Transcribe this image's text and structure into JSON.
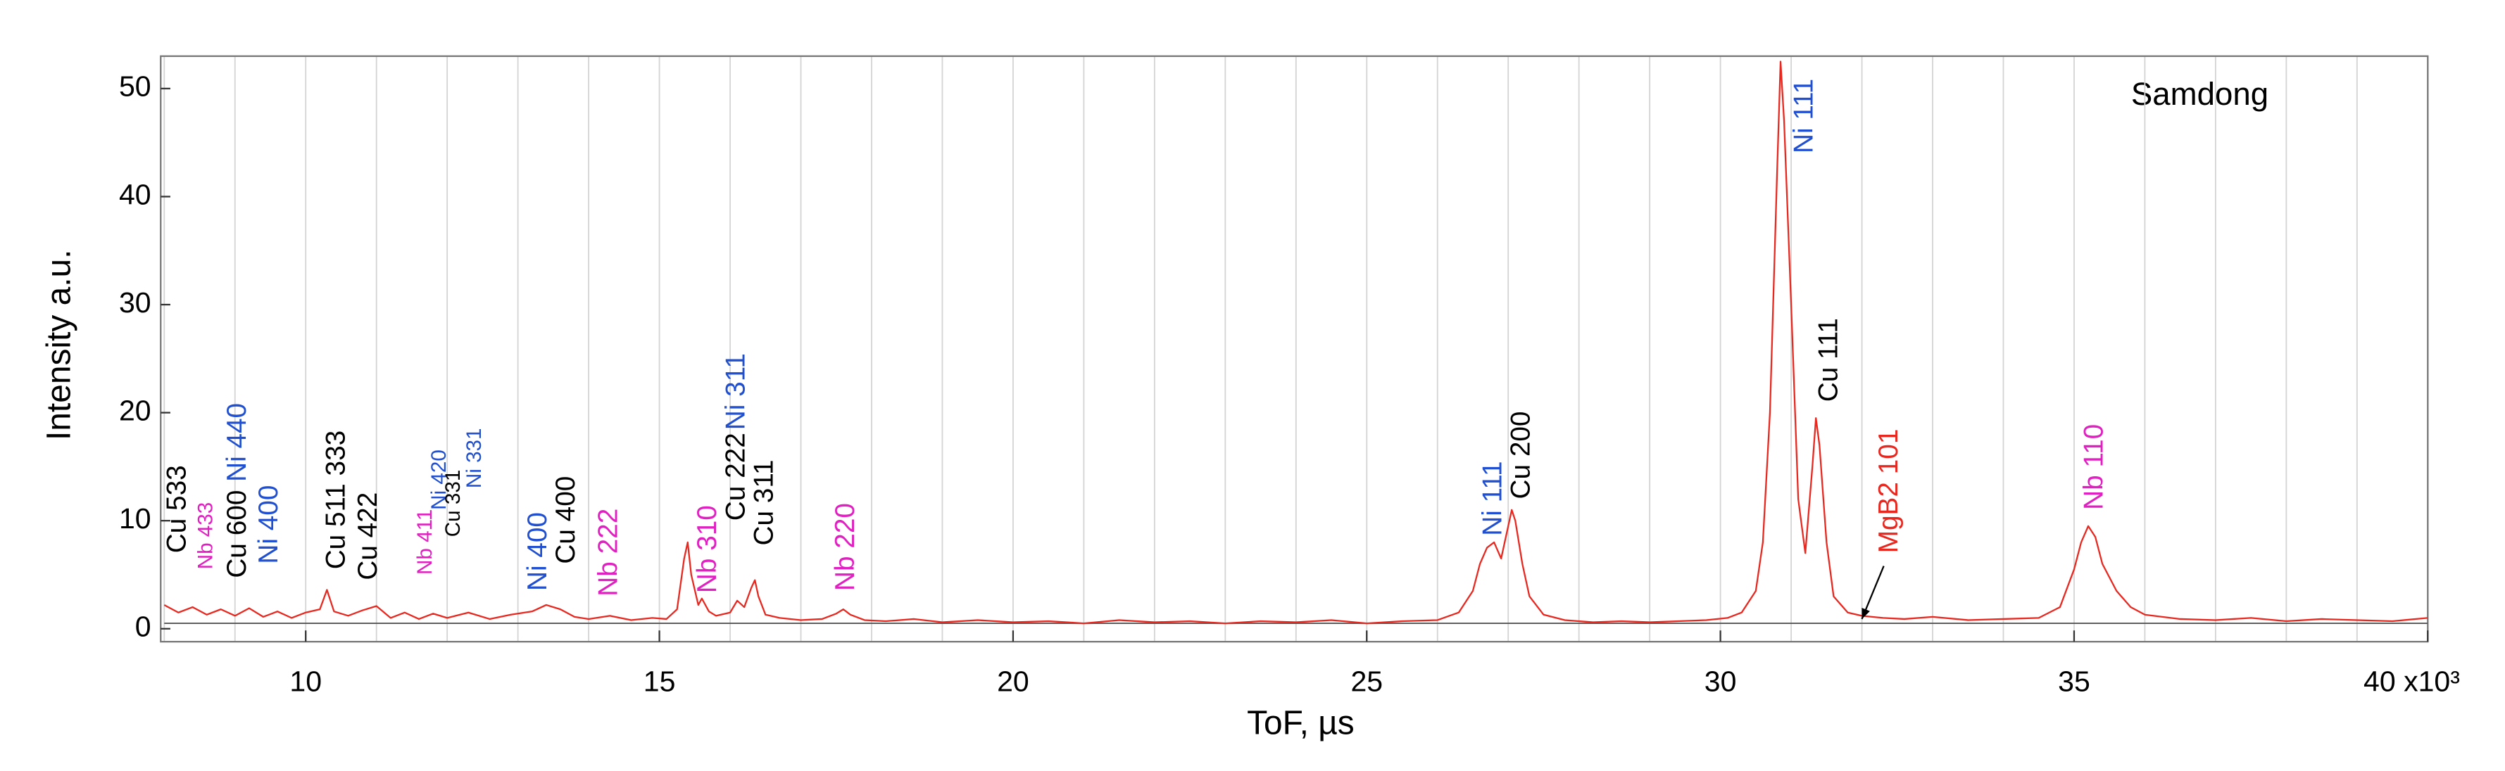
{
  "chart_data": {
    "type": "line",
    "title": "Samdong",
    "xlabel": "ToF,  µs",
    "ylabel": "Intensity a.u.",
    "xlim": [
      7.95,
      40
    ],
    "ylim": [
      -1.2,
      53
    ],
    "xticks": [
      10,
      15,
      20,
      25,
      30,
      35,
      {
        "value": 40,
        "label": "40 x10³"
      }
    ],
    "yticks": [
      0,
      10,
      20,
      30,
      40,
      50
    ],
    "xgrid": [
      8,
      9,
      10,
      11,
      12,
      13,
      14,
      15,
      16,
      17,
      18,
      19,
      20,
      21,
      22,
      23,
      24,
      25,
      26,
      27,
      28,
      29,
      30,
      31,
      32,
      33,
      34,
      35,
      36,
      37,
      38,
      39
    ],
    "series": [
      {
        "color": "#555555",
        "x": [
          8,
          40
        ],
        "values": [
          0.5,
          0.5
        ]
      },
      {
        "color": "#e8271f",
        "x": [
          8.0,
          8.2,
          8.4,
          8.6,
          8.8,
          9.0,
          9.2,
          9.4,
          9.6,
          9.8,
          10.0,
          10.2,
          10.3,
          10.4,
          10.6,
          10.8,
          11.0,
          11.2,
          11.4,
          11.6,
          11.8,
          12.0,
          12.3,
          12.6,
          12.9,
          13.2,
          13.4,
          13.6,
          13.8,
          14.0,
          14.3,
          14.6,
          14.9,
          15.1,
          15.25,
          15.35,
          15.4,
          15.45,
          15.55,
          15.6,
          15.7,
          15.8,
          16.0,
          16.1,
          16.2,
          16.3,
          16.35,
          16.4,
          16.5,
          16.7,
          17.0,
          17.3,
          17.5,
          17.6,
          17.7,
          17.9,
          18.2,
          18.6,
          19.0,
          19.5,
          20.0,
          20.5,
          21.0,
          21.5,
          22.0,
          22.5,
          23.0,
          23.5,
          24.0,
          24.5,
          25.0,
          25.5,
          26.0,
          26.3,
          26.5,
          26.6,
          26.7,
          26.8,
          26.9,
          27.0,
          27.05,
          27.1,
          27.2,
          27.3,
          27.5,
          27.8,
          28.2,
          28.6,
          29.0,
          29.4,
          29.8,
          30.1,
          30.3,
          30.5,
          30.6,
          30.7,
          30.8,
          30.85,
          30.9,
          31.0,
          31.1,
          31.2,
          31.3,
          31.35,
          31.4,
          31.5,
          31.6,
          31.8,
          32.0,
          32.3,
          32.6,
          33.0,
          33.5,
          34.0,
          34.5,
          34.8,
          35.0,
          35.1,
          35.2,
          35.3,
          35.4,
          35.6,
          35.8,
          36.0,
          36.5,
          37.0,
          37.5,
          38.0,
          38.5,
          39.0,
          39.5,
          40.0
        ],
        "values": [
          2.2,
          1.5,
          2.0,
          1.3,
          1.8,
          1.2,
          1.9,
          1.1,
          1.6,
          1.0,
          1.5,
          1.8,
          3.6,
          1.6,
          1.2,
          1.7,
          2.1,
          1.0,
          1.5,
          0.9,
          1.4,
          1.0,
          1.5,
          0.9,
          1.3,
          1.6,
          2.2,
          1.8,
          1.1,
          0.9,
          1.2,
          0.8,
          1.0,
          0.9,
          1.8,
          6.5,
          8.0,
          5.0,
          2.2,
          2.8,
          1.6,
          1.2,
          1.5,
          2.6,
          2.0,
          3.8,
          4.5,
          3.0,
          1.3,
          1.0,
          0.8,
          0.9,
          1.4,
          1.8,
          1.3,
          0.8,
          0.7,
          0.9,
          0.6,
          0.8,
          0.6,
          0.7,
          0.5,
          0.8,
          0.6,
          0.7,
          0.5,
          0.7,
          0.6,
          0.8,
          0.5,
          0.7,
          0.8,
          1.5,
          3.5,
          6.0,
          7.5,
          8.0,
          6.5,
          9.5,
          11.0,
          10.0,
          6.0,
          3.0,
          1.3,
          0.8,
          0.6,
          0.7,
          0.6,
          0.7,
          0.8,
          1.0,
          1.5,
          3.5,
          8.0,
          20.0,
          42.0,
          52.5,
          47.0,
          30.0,
          12.0,
          7.0,
          15.0,
          19.5,
          17.0,
          8.0,
          3.0,
          1.5,
          1.2,
          1.0,
          0.9,
          1.1,
          0.8,
          0.9,
          1.0,
          2.0,
          5.5,
          8.0,
          9.5,
          8.5,
          6.0,
          3.5,
          2.0,
          1.3,
          0.9,
          0.8,
          1.0,
          0.7,
          0.9,
          0.8,
          0.7,
          1.0
        ]
      }
    ],
    "annotations": [
      {
        "text": "Cu 533",
        "color": "#000000",
        "x": 8.2,
        "y": 7
      },
      {
        "text": "Nb 433",
        "color": "#e020c0",
        "x": 8.6,
        "y": 5.5,
        "small": true
      },
      {
        "text": "Cu 600",
        "color": "#000000",
        "x": 9.05,
        "y": 4.7
      },
      {
        "text": "Ni 440",
        "color": "#2050d0",
        "x": 9.05,
        "y": 13.6
      },
      {
        "text": "Ni 400",
        "color": "#2050d0",
        "x": 9.5,
        "y": 6
      },
      {
        "text": "Cu 511 333",
        "color": "#000000",
        "x": 10.45,
        "y": 5.5
      },
      {
        "text": "Cu 422",
        "color": "#000000",
        "x": 10.9,
        "y": 4.5
      },
      {
        "text": "Nb 411",
        "color": "#e020c0",
        "x": 11.7,
        "y": 5,
        "small": true
      },
      {
        "text": "Ni 420",
        "color": "#2050d0",
        "x": 11.9,
        "y": 11,
        "small": true
      },
      {
        "text": "Cu 331",
        "color": "#000000",
        "x": 12.1,
        "y": 8.5,
        "small": true
      },
      {
        "text": "Ni 331",
        "color": "#2050d0",
        "x": 12.4,
        "y": 13,
        "small": true
      },
      {
        "text": "Ni 400",
        "color": "#2050d0",
        "x": 13.3,
        "y": 3.5
      },
      {
        "text": "Cu 400",
        "color": "#000000",
        "x": 13.7,
        "y": 6
      },
      {
        "text": "Nb 222",
        "color": "#e020c0",
        "x": 14.3,
        "y": 3
      },
      {
        "text": "Nb 310",
        "color": "#e020c0",
        "x": 15.7,
        "y": 3.3
      },
      {
        "text": "Cu 222",
        "color": "#000000",
        "x": 16.1,
        "y": 10
      },
      {
        "text": "Ni 311",
        "color": "#2050d0",
        "x": 16.1,
        "y": 18.4
      },
      {
        "text": "Cu 311",
        "color": "#000000",
        "x": 16.5,
        "y": 7.7
      },
      {
        "text": "Nb 220",
        "color": "#e020c0",
        "x": 17.65,
        "y": 3.5
      },
      {
        "text": "Ni 111",
        "color": "#2050d0",
        "x": 26.8,
        "y": 8.6
      },
      {
        "text": "Cu 200",
        "color": "#000000",
        "x": 27.2,
        "y": 12
      },
      {
        "text": "Ni 111",
        "color": "#2050d0",
        "x": 31.2,
        "y": 44
      },
      {
        "text": "Cu 111",
        "color": "#000000",
        "x": 31.55,
        "y": 21
      },
      {
        "text": "MgB2 101",
        "color": "#e8271f",
        "x": 32.4,
        "y": 7,
        "arrow_to": [
          32.0,
          0.9
        ]
      },
      {
        "text": "Nb 110",
        "color": "#e020c0",
        "x": 35.3,
        "y": 11
      }
    ]
  }
}
